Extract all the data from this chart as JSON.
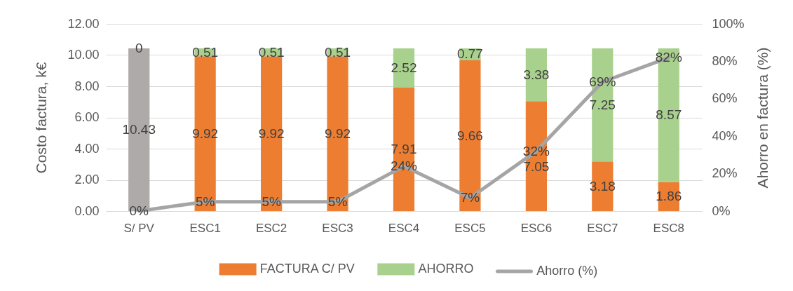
{
  "chart_data": {
    "type": "bar",
    "stacked": true,
    "categories": [
      "S/ PV",
      "ESC1",
      "ESC2",
      "ESC3",
      "ESC4",
      "ESC5",
      "ESC6",
      "ESC7",
      "ESC8"
    ],
    "ylabel": "Costo factura, k€",
    "y2label": "Ahorro en factura (%)",
    "ylim": [
      0,
      12
    ],
    "yticks": [
      {
        "value": 0,
        "label": "0.00"
      },
      {
        "value": 2,
        "label": "2.00"
      },
      {
        "value": 4,
        "label": "4.00"
      },
      {
        "value": 6,
        "label": "6.00"
      },
      {
        "value": 8,
        "label": "8.00"
      },
      {
        "value": 10,
        "label": "10.00"
      },
      {
        "value": 12,
        "label": "12.00"
      }
    ],
    "y2lim": [
      0,
      100
    ],
    "y2ticks": [
      {
        "value": 0,
        "label": "0%"
      },
      {
        "value": 20,
        "label": "20%"
      },
      {
        "value": 40,
        "label": "40%"
      },
      {
        "value": 60,
        "label": "60%"
      },
      {
        "value": 80,
        "label": "80%"
      },
      {
        "value": 100,
        "label": "100%"
      }
    ],
    "grid": "y",
    "legend": "bottom",
    "series": [
      {
        "name": "FACTURA C/ PV",
        "color": "#ed7d31",
        "colors": [
          "#aeaaaa",
          "#ed7d31",
          "#ed7d31",
          "#ed7d31",
          "#ed7d31",
          "#ed7d31",
          "#ed7d31",
          "#ed7d31",
          "#ed7d31"
        ],
        "values": [
          10.43,
          9.92,
          9.92,
          9.92,
          7.91,
          9.66,
          7.05,
          3.18,
          1.86
        ],
        "value_labels": [
          "10.43",
          "9.92",
          "9.92",
          "9.92",
          "7.91",
          "9.66",
          "7.05",
          "3.18",
          "1.86"
        ]
      },
      {
        "name": "AHORRO",
        "color": "#a9d18e",
        "values": [
          0,
          0.51,
          0.51,
          0.51,
          2.52,
          0.77,
          3.38,
          7.25,
          8.57
        ],
        "value_labels": [
          "0",
          "0.51",
          "0.51",
          "0.51",
          "2.52",
          "0.77",
          "3.38",
          "7.25",
          "8.57"
        ]
      },
      {
        "name": "Ahorro (%)",
        "type": "line",
        "axis": "y2",
        "color": "#a5a5a5",
        "values": [
          0,
          5,
          5,
          5,
          24,
          7,
          32,
          69,
          82
        ],
        "value_labels": [
          "0%",
          "5%",
          "5%",
          "5%",
          "24%",
          "7%",
          "32%",
          "69%",
          "82%"
        ]
      }
    ]
  }
}
